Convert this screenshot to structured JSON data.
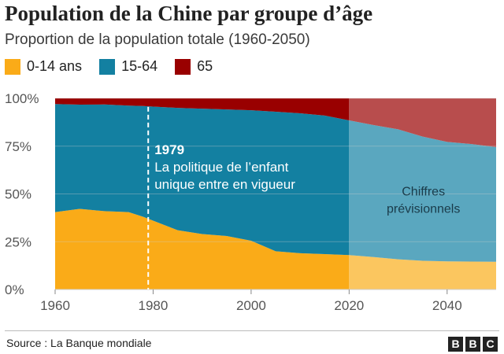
{
  "header": {
    "title": "Population de la Chine par groupe d’âge",
    "subtitle": "Proportion de la population totale (1960-2050)"
  },
  "legend": [
    {
      "label": "0-14 ans",
      "color": "#faab18"
    },
    {
      "label": "15-64",
      "color": "#1380a1"
    },
    {
      "label": "65",
      "color": "#990000"
    }
  ],
  "colors": {
    "young": "#faab18",
    "working": "#1380a1",
    "old": "#990000",
    "young_projection": "#fbc65f",
    "working_projection": "#5aa7bf",
    "old_projection": "#b84d4d",
    "annotation_line": "#ffffff"
  },
  "chart_data": {
    "type": "area",
    "stacked": true,
    "x": [
      1960,
      1965,
      1970,
      1975,
      1978,
      1980,
      1985,
      1990,
      1995,
      2000,
      2005,
      2010,
      2015,
      2020,
      2025,
      2030,
      2035,
      2040,
      2045,
      2050
    ],
    "series": [
      {
        "name": "0-14 ans",
        "values": [
          40.5,
          42.2,
          41.0,
          40.5,
          38.0,
          36.0,
          31.0,
          29.0,
          28.0,
          25.5,
          20.0,
          19.0,
          18.5,
          18.0,
          17.0,
          15.8,
          15.0,
          14.7,
          14.6,
          14.5
        ]
      },
      {
        "name": "15-64",
        "values": [
          56.5,
          54.5,
          55.8,
          55.7,
          58.0,
          59.7,
          64.0,
          65.6,
          66.2,
          68.3,
          73.0,
          73.2,
          72.5,
          70.5,
          69.0,
          68.0,
          65.0,
          62.5,
          61.5,
          60.0
        ]
      },
      {
        "name": "65",
        "values": [
          3.0,
          3.3,
          3.2,
          3.8,
          4.0,
          4.3,
          5.0,
          5.4,
          5.8,
          6.2,
          7.0,
          7.8,
          9.0,
          11.5,
          14.0,
          16.2,
          20.0,
          22.8,
          23.9,
          25.5
        ]
      }
    ],
    "xlim": [
      1960,
      2050
    ],
    "ylim": [
      0,
      100
    ],
    "xticks": [
      1960,
      1980,
      2000,
      2020,
      2040
    ],
    "xtick_labels": [
      "1960",
      "1980",
      "2000",
      "2020",
      "2040"
    ],
    "yticks": [
      0,
      25,
      50,
      75,
      100
    ],
    "ytick_labels": [
      "0%",
      "25%",
      "50%",
      "75%",
      "100%"
    ],
    "projection_start": 2020,
    "grid": true,
    "legend_position": "top-left",
    "annotations": [
      {
        "x": 1979,
        "year_label": "1979",
        "lines": [
          "La politique de l’enfant",
          "unique entre en vigueur"
        ]
      },
      {
        "x": 2035,
        "y": 50,
        "lines": [
          "Chiffres",
          "prévisionnels"
        ]
      }
    ]
  },
  "footer": {
    "source": "Source : La Banque mondiale",
    "logo": [
      "B",
      "B",
      "C"
    ]
  }
}
